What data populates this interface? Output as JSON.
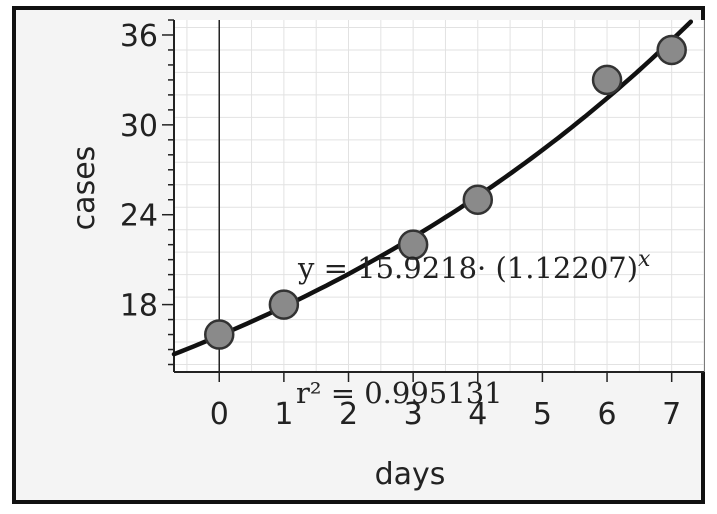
{
  "chart_data": {
    "type": "scatter",
    "xlabel": "days",
    "ylabel": "cases",
    "x_ticks": [
      "0",
      "1",
      "2",
      "3",
      "4",
      "5",
      "6",
      "7"
    ],
    "y_ticks": [
      "18",
      "24",
      "30",
      "36"
    ],
    "xlim": [
      -0.7,
      7.5
    ],
    "ylim": [
      13.5,
      37.0
    ],
    "grid": true,
    "series": [
      {
        "x": [
          0,
          1,
          3,
          4,
          6,
          7
        ],
        "y": [
          16.0,
          18.0,
          22.0,
          25.0,
          33.0,
          35.0
        ],
        "color": "#8a8a8a"
      }
    ],
    "fit": {
      "model": "exponential",
      "a": 15.9218,
      "b": 1.12207,
      "color": "#111111"
    },
    "annotations": {
      "equation": "y = 15.9218· (1.12207)^x",
      "r_squared": "r² = 0.995131"
    }
  }
}
